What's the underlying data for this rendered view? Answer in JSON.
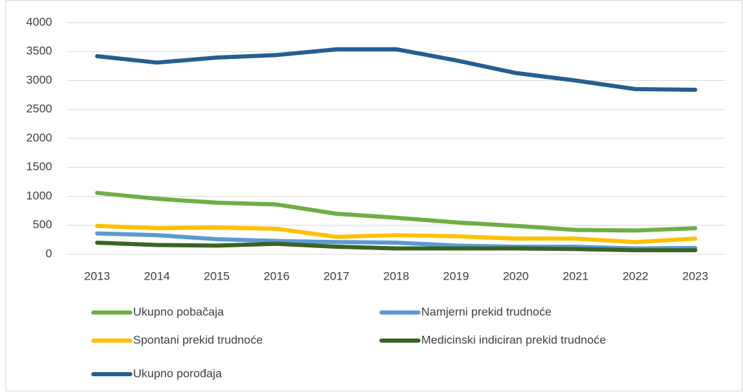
{
  "chart_data": {
    "type": "line",
    "categories": [
      "2013",
      "2014",
      "2015",
      "2016",
      "2017",
      "2018",
      "2019",
      "2020",
      "2021",
      "2022",
      "2023"
    ],
    "series": [
      {
        "name": "Ukupno pobačaja",
        "color": "#70ad47",
        "values": [
          1060,
          958,
          890,
          860,
          700,
          630,
          550,
          490,
          420,
          410,
          450
        ]
      },
      {
        "name": "Namjerni prekid trudnoće",
        "color": "#5b9bd5",
        "values": [
          360,
          330,
          260,
          230,
          210,
          200,
          150,
          130,
          130,
          100,
          110
        ]
      },
      {
        "name": "Spontani prekid trudnoće",
        "color": "#ffc000",
        "values": [
          490,
          450,
          460,
          440,
          300,
          330,
          310,
          270,
          270,
          210,
          270
        ]
      },
      {
        "name": "Medicinski indiciran prekid trudnoće",
        "color": "#3b6323",
        "values": [
          200,
          160,
          150,
          180,
          130,
          100,
          100,
          100,
          90,
          70,
          70
        ]
      },
      {
        "name": "Ukupno porođaja",
        "color": "#255e91",
        "values": [
          3420,
          3310,
          3396,
          3440,
          3538,
          3540,
          3349,
          3130,
          3000,
          2852,
          2840
        ]
      }
    ],
    "ylim": [
      0,
      4000
    ],
    "yticks": [
      0,
      500,
      1000,
      1500,
      2000,
      2500,
      3000,
      3500,
      4000
    ],
    "grid": true,
    "legend": "bottom"
  }
}
